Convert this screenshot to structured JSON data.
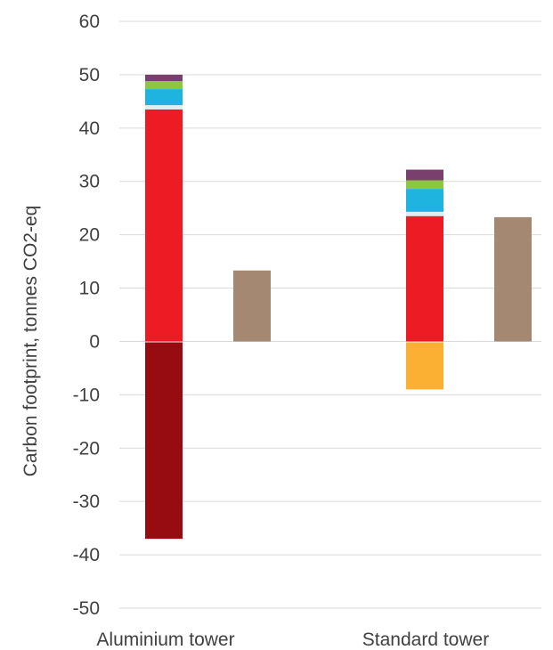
{
  "chart_data": {
    "type": "bar",
    "stacked": true,
    "title": "",
    "xlabel": "",
    "ylabel": "Carbon footprint, tonnes CO2-eq",
    "ylim": [
      -50,
      60
    ],
    "yticks": [
      60,
      50,
      40,
      30,
      20,
      10,
      0,
      -10,
      -20,
      -30,
      -40,
      -50
    ],
    "grid": true,
    "legend": "none",
    "categories": [
      "Aluminium tower",
      "Standard tower"
    ],
    "bars": [
      {
        "group": "Aluminium tower",
        "slot": "left",
        "segments": [
          {
            "value": 43.5,
            "color": "#ed1c24"
          },
          {
            "value": 0.8,
            "color": "#dbeef4"
          },
          {
            "value": 3.0,
            "color": "#1fb3e0"
          },
          {
            "value": 1.5,
            "color": "#8dc63f"
          },
          {
            "value": 1.2,
            "color": "#7b3f6e"
          }
        ],
        "negative": [
          {
            "value": -37.0,
            "color": "#970c10"
          }
        ]
      },
      {
        "group": "Aluminium tower",
        "slot": "right",
        "segments": [
          {
            "value": 13.3,
            "color": "#a48872"
          }
        ],
        "negative": []
      },
      {
        "group": "Standard tower",
        "slot": "left",
        "segments": [
          {
            "value": 23.5,
            "color": "#ed1c24"
          },
          {
            "value": 0.8,
            "color": "#dbeef4"
          },
          {
            "value": 4.3,
            "color": "#1fb3e0"
          },
          {
            "value": 1.6,
            "color": "#8dc63f"
          },
          {
            "value": 2.0,
            "color": "#7b3f6e"
          }
        ],
        "negative": [
          {
            "value": -9.0,
            "color": "#fbb034"
          }
        ]
      },
      {
        "group": "Standard tower",
        "slot": "right",
        "segments": [
          {
            "value": 23.3,
            "color": "#a48872"
          }
        ],
        "negative": []
      }
    ]
  }
}
